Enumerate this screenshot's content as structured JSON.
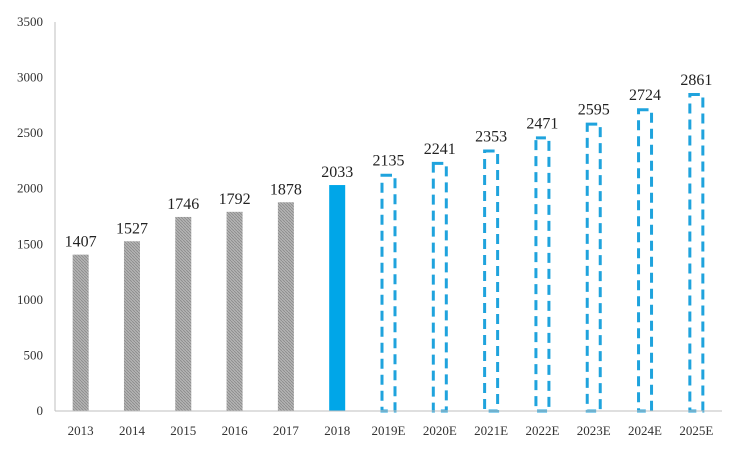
{
  "chart_data": {
    "type": "bar",
    "title": "",
    "xlabel": "",
    "ylabel": "",
    "ylim": [
      0,
      3500
    ],
    "yticks": [
      0,
      500,
      1000,
      1500,
      2000,
      2500,
      3000,
      3500
    ],
    "grid": false,
    "legend": "none",
    "categories": [
      "2013",
      "2014",
      "2015",
      "2016",
      "2017",
      "2018",
      "2019E",
      "2020E",
      "2021E",
      "2022E",
      "2023E",
      "2024E",
      "2025E"
    ],
    "values": [
      1407,
      1527,
      1746,
      1792,
      1878,
      2033,
      2135,
      2241,
      2353,
      2471,
      2595,
      2724,
      2861
    ],
    "bar_styles": [
      "hatched",
      "hatched",
      "hatched",
      "hatched",
      "hatched",
      "solid",
      "dashed-outline",
      "dashed-outline",
      "dashed-outline",
      "dashed-outline",
      "dashed-outline",
      "dashed-outline",
      "dashed-outline"
    ],
    "colors": {
      "hatched": "#9e9e9e",
      "solid": "#00a6e8",
      "dashed-outline": "#1fa3dd",
      "axis": "#bfbfbf"
    }
  }
}
